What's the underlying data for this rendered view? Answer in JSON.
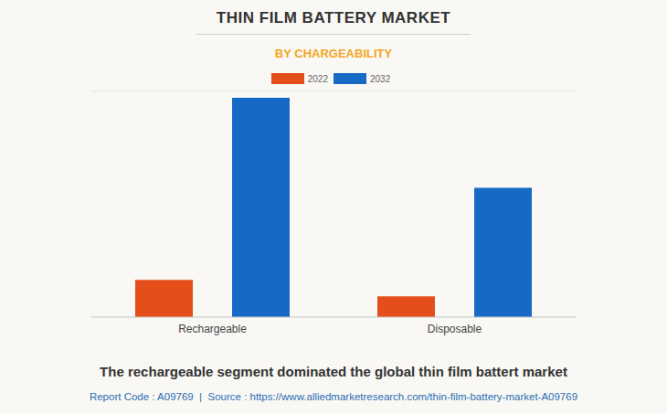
{
  "chart_data": {
    "type": "bar",
    "title": "THIN FILM BATTERY MARKET",
    "subtitle": "BY CHARGEABILITY",
    "categories": [
      "Rechargeable",
      "Disposable"
    ],
    "series": [
      {
        "name": "2022",
        "color": "#e34e1b",
        "values": [
          1.32,
          0.74
        ]
      },
      {
        "name": "2032",
        "color": "#1769c6",
        "values": [
          7.77,
          4.58
        ]
      }
    ],
    "ylim": [
      0,
      8
    ],
    "yticks": [
      0,
      1,
      2,
      3,
      4,
      5,
      6,
      7,
      8
    ],
    "grid": true,
    "legend": "top",
    "tick_labels": "x",
    "annotations": [
      "The rechargeable segment dominated the global thin film battert market",
      "Report Code : A09769  |  Source : https://www.alliedmarketresearch.com/thin-film-battery-market-A09769"
    ]
  }
}
